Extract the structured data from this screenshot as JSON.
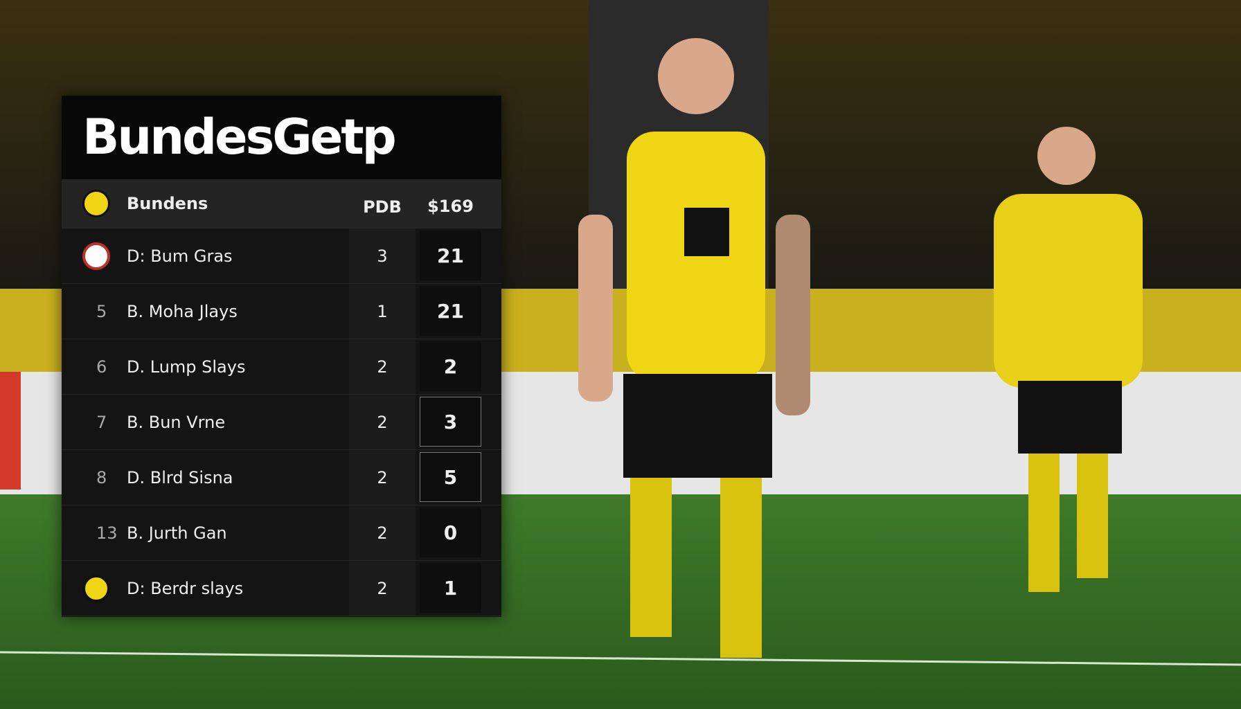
{
  "panel": {
    "title": "BundesGetp",
    "header": {
      "name": "Bundens",
      "col1": "PDB",
      "col2": "$169"
    },
    "rows": [
      {
        "rank": null,
        "name": "D: Bum Gras",
        "col1": "3",
        "col2": "21"
      },
      {
        "rank": "5",
        "name": "B. Moha Jlays",
        "col1": "1",
        "col2": "21"
      },
      {
        "rank": "6",
        "name": "D. Lump Slays",
        "col1": "2",
        "col2": "2"
      },
      {
        "rank": "7",
        "name": "B. Bun Vrne",
        "col1": "2",
        "col2": "3"
      },
      {
        "rank": "8",
        "name": "D. Blrd Sisna",
        "col1": "2",
        "col2": "5"
      },
      {
        "rank": "13",
        "name": "B. Jurth Gan",
        "col1": "2",
        "col2": "0"
      },
      {
        "rank": null,
        "name": "D: Berdr slays",
        "col1": "2",
        "col2": "1"
      }
    ]
  }
}
